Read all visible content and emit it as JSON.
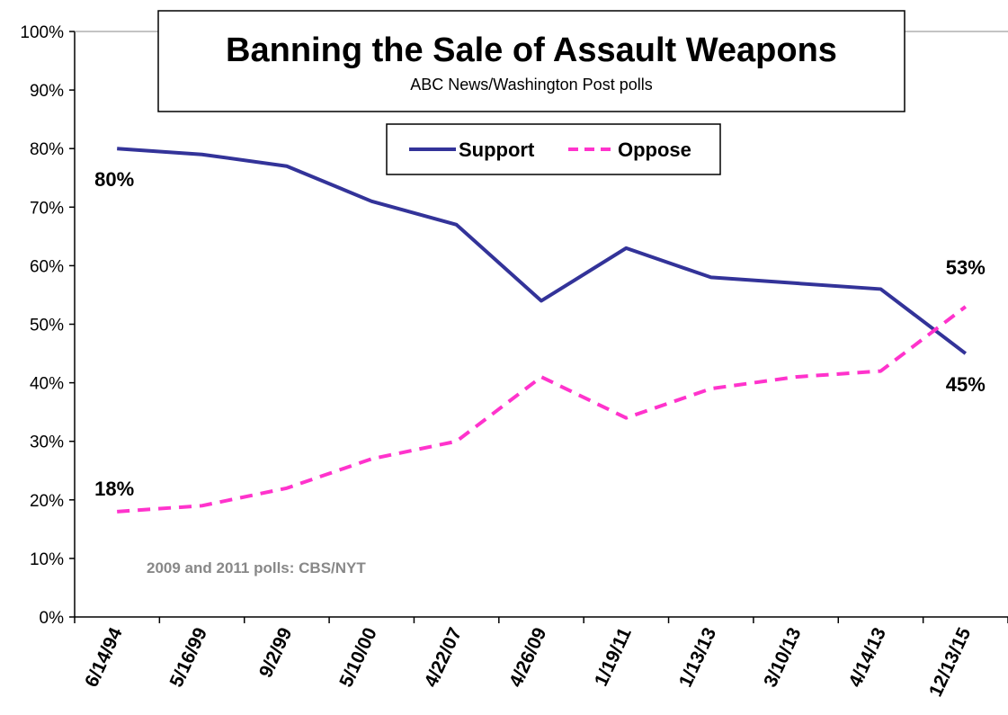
{
  "chart_data": {
    "type": "line",
    "title": "Banning the Sale of Assault Weapons",
    "subtitle": "ABC News/Washington  Post polls",
    "categories": [
      "6/14/94",
      "5/16/99",
      "9/2/99",
      "5/10/00",
      "4/22/07",
      "4/26/09",
      "1/19/11",
      "1/13/13",
      "3/10/13",
      "4/14/13",
      "12/13/15"
    ],
    "series": [
      {
        "name": "Support",
        "values": [
          80,
          79,
          77,
          71,
          67,
          54,
          63,
          58,
          57,
          56,
          45
        ],
        "color": "#333399",
        "dash": "solid"
      },
      {
        "name": "Oppose",
        "values": [
          18,
          19,
          22,
          27,
          30,
          41,
          34,
          39,
          41,
          42,
          53
        ],
        "color": "#ff33cc",
        "dash": "dashed"
      }
    ],
    "y_ticks": [
      "0%",
      "10%",
      "20%",
      "30%",
      "40%",
      "50%",
      "60%",
      "70%",
      "80%",
      "90%",
      "100%"
    ],
    "ylim": [
      0,
      100
    ],
    "grid": false,
    "legend_position": "top-center",
    "data_labels": [
      {
        "series": "Support",
        "index": 0,
        "text": "80%"
      },
      {
        "series": "Oppose",
        "index": 0,
        "text": "18%"
      },
      {
        "series": "Oppose",
        "index": 10,
        "text": "53%"
      },
      {
        "series": "Support",
        "index": 10,
        "text": "45%"
      }
    ],
    "annotation": "2009 and 2011 polls: CBS/NYT"
  }
}
